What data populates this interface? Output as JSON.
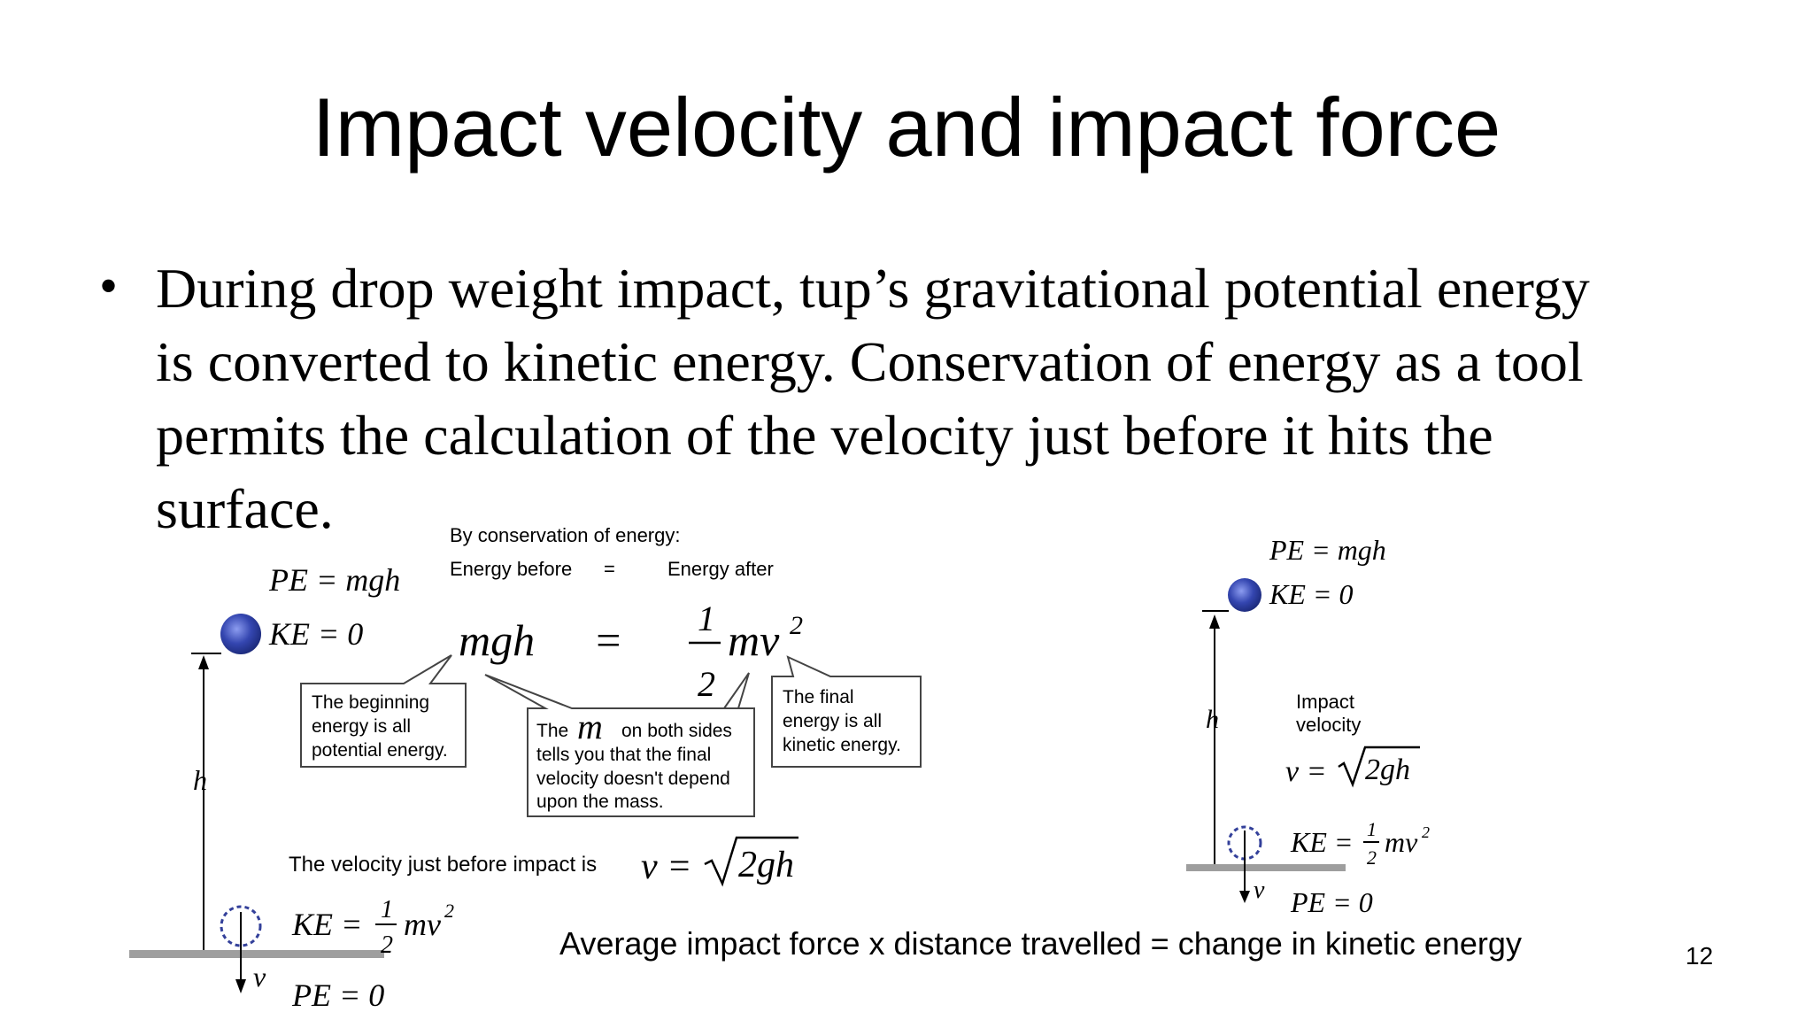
{
  "slide": {
    "title": "Impact velocity and impact force",
    "bullet_lines": [
      "During drop weight  impact, tup’s gravitational potential energy",
      "is converted to kinetic energy. Conservation of energy as a tool",
      "permits the calculation of the velocity just before it hits the",
      "surface."
    ],
    "footer_equation": "Average impact force x distance travelled = change in kinetic energy",
    "page_number": "12"
  },
  "left_diagram": {
    "pe_top": "PE = mgh",
    "ke_top": "KE = 0",
    "h_label": "h",
    "conservation_heading": "By conservation of energy:",
    "energy_before": "Energy before",
    "equals": "=",
    "energy_after": "Energy after",
    "eq_left": "mgh",
    "eq_sign": "=",
    "frac_num": "1",
    "frac_den": "2",
    "eq_right": "mv",
    "eq_exp": "2",
    "callout_beginning": [
      "The beginning",
      "energy is all",
      "potential energy."
    ],
    "callout_m_prefix": "The",
    "callout_m_symbol": "m",
    "callout_m_suffix": "on both sides",
    "callout_m_lines": [
      "tells you that the final",
      "velocity doesn't depend",
      "upon the mass."
    ],
    "callout_final": [
      "The  final",
      "energy is all",
      "kinetic energy."
    ],
    "velocity_text": "The velocity just before impact is",
    "v_eq": "v =",
    "sqrt_content": "2gh",
    "ke_bottom_lhs": "KE =",
    "ke_bottom_num": "1",
    "ke_bottom_den": "2",
    "ke_bottom_rhs": "mv",
    "ke_bottom_exp": "2",
    "pe_bottom": "PE = 0",
    "v_label": "v"
  },
  "right_diagram": {
    "pe_top": "PE = mgh",
    "ke_top": "KE = 0",
    "h_label": "h",
    "impact_label": [
      "Impact",
      "velocity"
    ],
    "v_eq": "v =",
    "sqrt_content": "2gh",
    "ke_bottom_lhs": "KE =",
    "ke_bottom_num": "1",
    "ke_bottom_den": "2",
    "ke_bottom_rhs": "mv",
    "ke_bottom_exp": "2",
    "pe_bottom": "PE = 0",
    "v_label": "v"
  },
  "colors": {
    "ball": "#2a3fa0",
    "ball_highlight": "#7f8fe0",
    "ground": "#9e9e9e",
    "dashed_circle": "#33409a",
    "callout_border": "#444444"
  }
}
